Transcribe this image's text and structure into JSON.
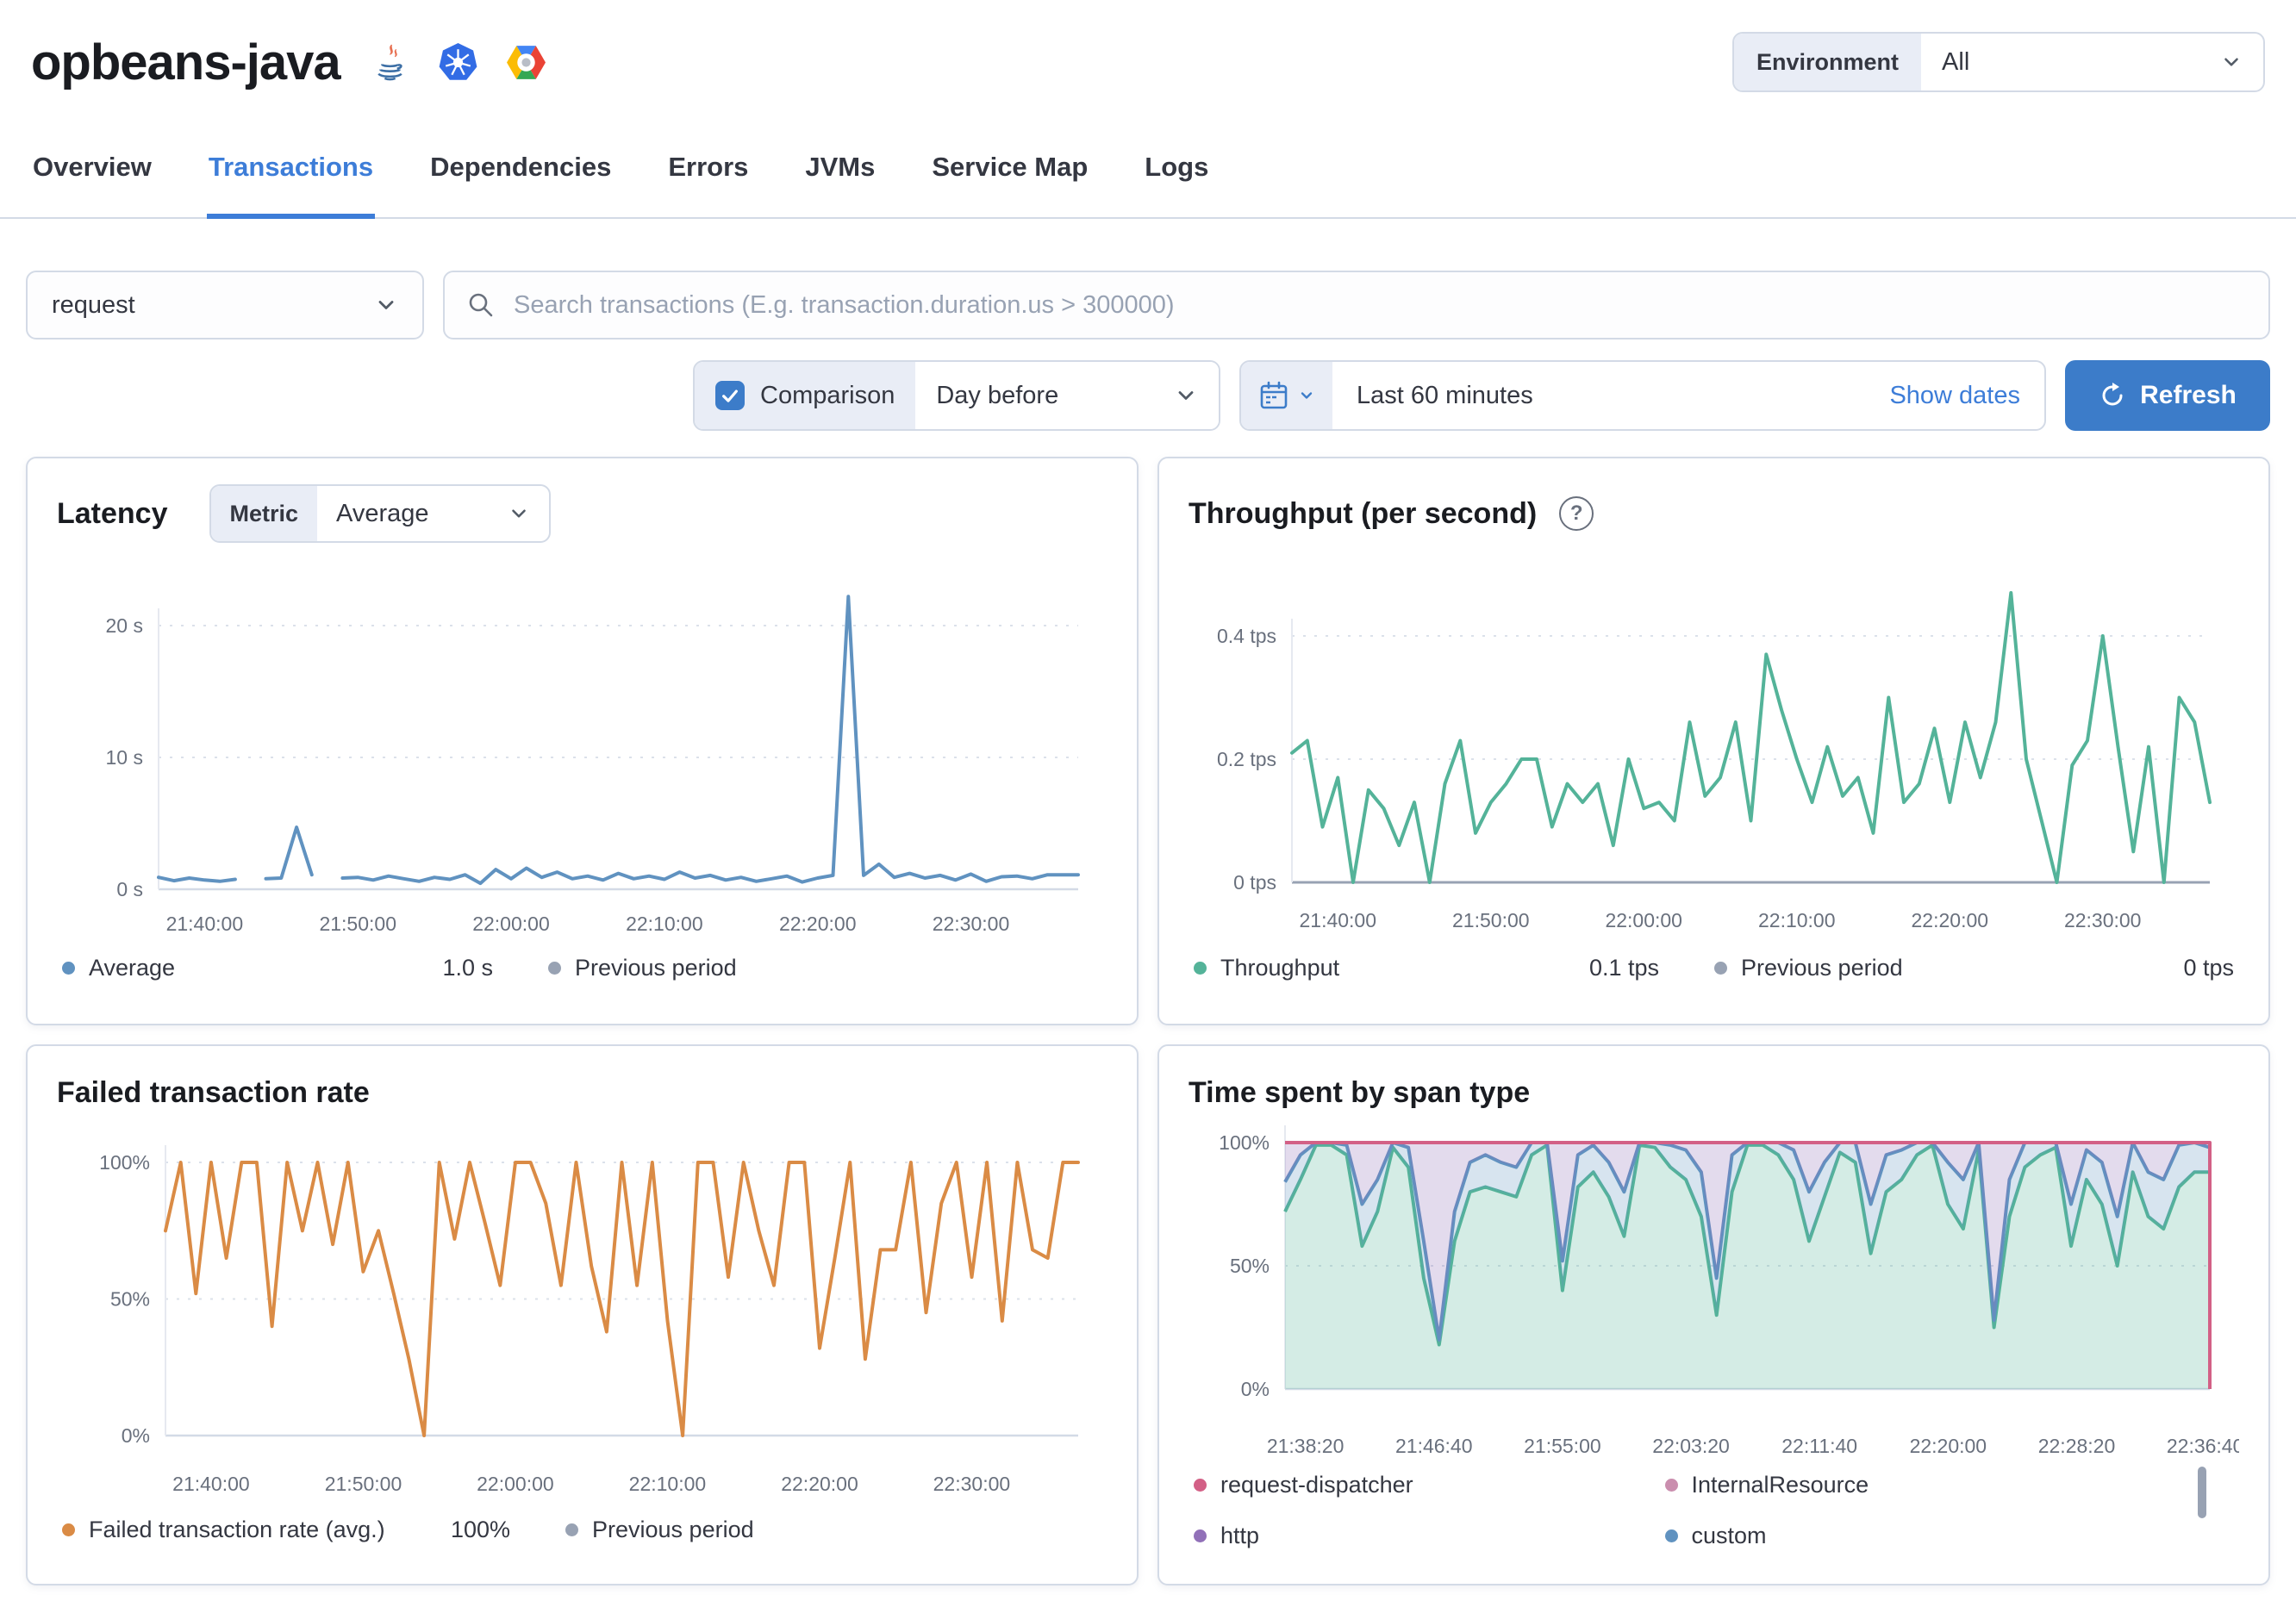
{
  "app": {
    "title": "opbeans-java"
  },
  "header": {
    "environment_label": "Environment",
    "environment_value": "All",
    "agent_icons": [
      "java-icon",
      "kubernetes-icon",
      "google-cloud-icon"
    ]
  },
  "tabs": [
    {
      "label": "Overview",
      "active": false
    },
    {
      "label": "Transactions",
      "active": true
    },
    {
      "label": "Dependencies",
      "active": false
    },
    {
      "label": "Errors",
      "active": false
    },
    {
      "label": "JVMs",
      "active": false
    },
    {
      "label": "Service Map",
      "active": false
    },
    {
      "label": "Logs",
      "active": false
    }
  ],
  "filters": {
    "transaction_type": "request",
    "search_placeholder": "Search transactions (E.g. transaction.duration.us > 300000)"
  },
  "toolbar": {
    "comparison_label": "Comparison",
    "comparison_checked": true,
    "comparison_value": "Day before",
    "time_range": "Last 60 minutes",
    "show_dates_label": "Show dates",
    "refresh_label": "Refresh"
  },
  "colors": {
    "accent_blue": "#3C7CC9",
    "link_blue": "#3D7DD8",
    "border": "#d3dae6",
    "label_bg": "#e9edf6",
    "muted_text": "#69707D",
    "previous_period": "#98A2B3"
  },
  "chart_data": [
    {
      "id": "latency",
      "type": "line",
      "title": "Latency",
      "metric_label": "Metric",
      "metric_value": "Average",
      "ylim": [
        0,
        22
      ],
      "yticks": [
        {
          "v": 20,
          "label": "20 s"
        },
        {
          "v": 10,
          "label": "10 s"
        },
        {
          "v": 0,
          "label": "0 s"
        }
      ],
      "xticks": [
        "21:40:00",
        "21:50:00",
        "22:00:00",
        "22:10:00",
        "22:20:00",
        "22:30:00"
      ],
      "series": [
        {
          "name": "Average",
          "color": "#6092C0",
          "values": [
            0.9,
            0.65,
            0.85,
            0.7,
            0.6,
            0.75,
            null,
            0.8,
            0.85,
            4.7,
            1.1,
            null,
            0.85,
            0.9,
            0.7,
            1.0,
            0.8,
            0.6,
            0.9,
            0.75,
            1.1,
            0.45,
            1.5,
            0.8,
            1.6,
            0.9,
            1.3,
            0.8,
            1.0,
            0.7,
            1.2,
            0.8,
            1.0,
            0.75,
            1.3,
            0.85,
            1.05,
            0.7,
            0.9,
            0.6,
            0.8,
            1.0,
            0.55,
            0.85,
            1.05,
            22.2,
            1.05,
            1.9,
            0.9,
            1.2,
            0.85,
            1.05,
            0.7,
            1.15,
            0.6,
            0.95,
            1.0,
            0.8,
            1.1,
            1.1,
            1.1
          ]
        }
      ],
      "legend": [
        {
          "label": "Average",
          "color": "#6092C0",
          "value": "1.0 s"
        },
        {
          "label": "Previous period",
          "color": "#98A2B3",
          "value": ""
        }
      ]
    },
    {
      "id": "throughput",
      "type": "line",
      "title": "Throughput (per second)",
      "has_help_icon": true,
      "ylim": [
        0,
        0.5
      ],
      "yticks": [
        {
          "v": 0.4,
          "label": "0.4 tps"
        },
        {
          "v": 0.2,
          "label": "0.2 tps"
        },
        {
          "v": 0,
          "label": "0 tps"
        }
      ],
      "xticks": [
        "21:40:00",
        "21:50:00",
        "22:00:00",
        "22:10:00",
        "22:20:00",
        "22:30:00"
      ],
      "series": [
        {
          "name": "Throughput",
          "color": "#54B399",
          "values": [
            0.21,
            0.23,
            0.09,
            0.17,
            0.0,
            0.15,
            0.12,
            0.06,
            0.13,
            0.0,
            0.16,
            0.23,
            0.08,
            0.13,
            0.16,
            0.2,
            0.2,
            0.09,
            0.16,
            0.13,
            0.16,
            0.06,
            0.2,
            0.12,
            0.13,
            0.1,
            0.26,
            0.14,
            0.17,
            0.26,
            0.1,
            0.37,
            0.28,
            0.2,
            0.13,
            0.22,
            0.14,
            0.17,
            0.08,
            0.3,
            0.13,
            0.16,
            0.25,
            0.13,
            0.26,
            0.17,
            0.26,
            0.47,
            0.2,
            0.1,
            0.0,
            0.19,
            0.23,
            0.4,
            0.22,
            0.05,
            0.22,
            0.0,
            0.3,
            0.26,
            0.13
          ]
        }
      ],
      "legend": [
        {
          "label": "Throughput",
          "color": "#54B399",
          "value": "0.1 tps"
        },
        {
          "label": "Previous period",
          "color": "#98A2B3",
          "value": "0 tps"
        }
      ]
    },
    {
      "id": "failed",
      "type": "line",
      "title": "Failed transaction rate",
      "ylim": [
        0,
        100
      ],
      "yticks": [
        {
          "v": 100,
          "label": "100%"
        },
        {
          "v": 50,
          "label": "50%"
        },
        {
          "v": 0,
          "label": "0%"
        }
      ],
      "xticks": [
        "21:40:00",
        "21:50:00",
        "22:00:00",
        "22:10:00",
        "22:20:00",
        "22:30:00"
      ],
      "series": [
        {
          "name": "Failed transaction rate (avg.)",
          "color": "#DA8B45",
          "values": [
            75,
            100,
            52,
            100,
            65,
            100,
            100,
            40,
            100,
            75,
            100,
            70,
            100,
            60,
            75,
            52,
            28,
            0,
            100,
            72,
            100,
            78,
            55,
            100,
            100,
            85,
            55,
            100,
            62,
            38,
            100,
            55,
            100,
            42,
            0,
            100,
            100,
            58,
            100,
            75,
            55,
            100,
            100,
            32,
            65,
            100,
            28,
            68,
            68,
            100,
            45,
            85,
            100,
            58,
            100,
            42,
            100,
            68,
            65,
            100,
            100
          ]
        }
      ],
      "legend": [
        {
          "label": "Failed transaction rate (avg.)",
          "color": "#DA8B45",
          "value": "100%"
        },
        {
          "label": "Previous period",
          "color": "#98A2B3",
          "value": ""
        }
      ]
    },
    {
      "id": "span",
      "type": "area_stacked",
      "title": "Time spent by span type",
      "ylim": [
        0,
        100
      ],
      "yticks": [
        {
          "v": 100,
          "label": "100%"
        },
        {
          "v": 50,
          "label": "50%"
        },
        {
          "v": 0,
          "label": "0%"
        }
      ],
      "xticks": [
        "21:38:20",
        "21:46:40",
        "21:55:00",
        "22:03:20",
        "22:11:40",
        "22:20:00",
        "22:28:20",
        "22:36:40"
      ],
      "bands": [
        {
          "color": "#54B399",
          "top": [
            72,
            85,
            99,
            99,
            95,
            58,
            72,
            98,
            90,
            45,
            18,
            60,
            80,
            82,
            80,
            78,
            95,
            99,
            40,
            82,
            88,
            78,
            62,
            99,
            98,
            90,
            85,
            70,
            30,
            80,
            99,
            99,
            95,
            85,
            60,
            78,
            96,
            92,
            55,
            80,
            85,
            95,
            99,
            75,
            65,
            97,
            25,
            70,
            90,
            95,
            98,
            58,
            85,
            75,
            50,
            88,
            70,
            65,
            82,
            88,
            88
          ]
        },
        {
          "color": "#6092C0",
          "top": [
            84,
            95,
            100,
            100,
            99,
            75,
            85,
            100,
            98,
            60,
            20,
            72,
            92,
            95,
            92,
            90,
            100,
            100,
            52,
            95,
            99,
            92,
            80,
            100,
            100,
            99,
            97,
            88,
            45,
            95,
            100,
            100,
            100,
            97,
            80,
            92,
            100,
            100,
            75,
            95,
            97,
            100,
            100,
            92,
            85,
            100,
            28,
            85,
            100,
            100,
            100,
            75,
            97,
            92,
            70,
            100,
            88,
            85,
            99,
            100,
            98
          ]
        },
        {
          "color": "#9170B8",
          "top": "full"
        }
      ],
      "top_line": {
        "color": "#D36086"
      },
      "legend": [
        {
          "label": "request-dispatcher",
          "color": "#D36086",
          "value": ""
        },
        {
          "label": "InternalResource",
          "color": "#CA8EAE",
          "value": ""
        },
        {
          "label": "http",
          "color": "#9170B8",
          "value": ""
        },
        {
          "label": "custom",
          "color": "#6092C0",
          "value": ""
        }
      ]
    }
  ]
}
